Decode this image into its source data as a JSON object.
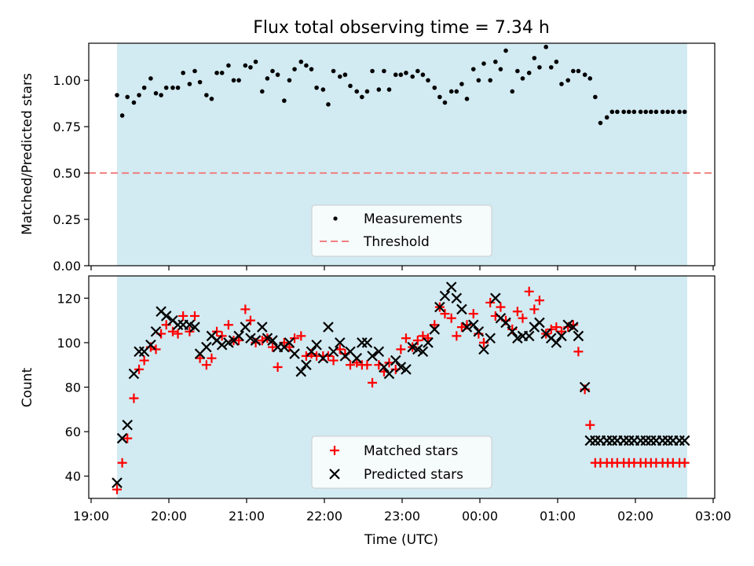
{
  "title": "Flux total observing time = 7.34 h",
  "colors": {
    "shade": "#add8e6",
    "threshold": "#f08080",
    "matched": "#ff0000",
    "predicted": "#000000",
    "measurement": "#000000"
  },
  "chart_data": [
    {
      "type": "scatter",
      "ylabel": "Matched/Predicted stars",
      "ylim": [
        0,
        1.2
      ],
      "yticks": [
        "0.00",
        "0.25",
        "0.50",
        "0.75",
        "1.00"
      ],
      "xlim": [
        "19:00",
        "03:00"
      ],
      "observing_window": [
        "19:20",
        "02:40"
      ],
      "threshold": 0.5,
      "legend": {
        "placement": "lower center",
        "items": [
          "Measurements",
          "Threshold"
        ]
      },
      "series": [
        {
          "name": "Measurements",
          "x": [
            "19:20",
            "19:24",
            "19:28",
            "19:33",
            "19:37",
            "19:41",
            "19:46",
            "19:50",
            "19:54",
            "19:58",
            "20:03",
            "20:07",
            "20:11",
            "20:16",
            "20:20",
            "20:24",
            "20:29",
            "20:33",
            "20:37",
            "20:41",
            "20:46",
            "20:50",
            "20:54",
            "20:59",
            "21:03",
            "21:07",
            "21:12",
            "21:16",
            "21:20",
            "21:24",
            "21:29",
            "21:33",
            "21:37",
            "21:42",
            "21:46",
            "21:50",
            "21:54",
            "21:59",
            "22:03",
            "22:07",
            "22:12",
            "22:16",
            "22:20",
            "22:25",
            "22:29",
            "22:33",
            "22:37",
            "22:42",
            "22:46",
            "22:50",
            "22:55",
            "22:59",
            "23:03",
            "23:08",
            "23:12",
            "23:16",
            "23:20",
            "23:25",
            "23:29",
            "23:33",
            "23:38",
            "23:42",
            "23:46",
            "23:50",
            "23:55",
            "23:59",
            "00:03",
            "00:08",
            "00:12",
            "00:16",
            "00:20",
            "00:25",
            "00:29",
            "00:33",
            "00:38",
            "00:42",
            "00:46",
            "00:51",
            "00:55",
            "00:59",
            "01:03",
            "01:08",
            "01:12",
            "01:16",
            "01:21",
            "01:25",
            "01:29",
            "01:33",
            "01:38",
            "01:42",
            "01:46",
            "01:51",
            "01:55",
            "01:59",
            "02:04",
            "02:08",
            "02:12",
            "02:16",
            "02:21",
            "02:25",
            "02:29",
            "02:34",
            "02:38"
          ],
          "y": [
            0.92,
            0.81,
            0.91,
            0.88,
            0.92,
            0.96,
            1.01,
            0.93,
            0.92,
            0.96,
            0.96,
            0.96,
            1.04,
            0.98,
            1.05,
            0.99,
            0.92,
            0.9,
            1.04,
            1.04,
            1.08,
            1.0,
            1.0,
            1.08,
            1.07,
            1.1,
            0.94,
            1.01,
            1.05,
            1.03,
            0.89,
            1.0,
            1.06,
            1.1,
            1.08,
            1.06,
            0.96,
            0.95,
            0.87,
            1.05,
            1.02,
            1.03,
            0.97,
            0.94,
            0.91,
            0.94,
            1.05,
            0.95,
            1.05,
            0.95,
            1.03,
            1.03,
            1.04,
            1.02,
            1.05,
            1.03,
            1.0,
            0.96,
            0.91,
            0.88,
            0.94,
            0.94,
            0.98,
            0.9,
            1.06,
            1.0,
            1.09,
            1.0,
            1.1,
            1.06,
            1.16,
            0.94,
            1.05,
            1.01,
            1.04,
            1.12,
            1.07,
            1.18,
            1.07,
            1.1,
            0.98,
            1.0,
            1.05,
            1.05,
            1.03,
            1.01,
            0.91,
            0.77,
            0.8,
            0.83,
            0.83,
            0.83,
            0.83,
            0.83,
            0.83,
            0.83,
            0.83,
            0.83,
            0.83,
            0.83,
            0.83,
            0.83,
            0.83
          ]
        }
      ]
    },
    {
      "type": "scatter",
      "xlabel": "Time (UTC)",
      "ylabel": "Count",
      "ylim": [
        30,
        130
      ],
      "yticks": [
        "40",
        "60",
        "80",
        "100",
        "120"
      ],
      "xlim": [
        "19:00",
        "03:00"
      ],
      "xticks": [
        "19:00",
        "20:00",
        "21:00",
        "22:00",
        "23:00",
        "00:00",
        "01:00",
        "02:00",
        "03:00"
      ],
      "observing_window": [
        "19:20",
        "02:40"
      ],
      "legend": {
        "placement": "lower center",
        "items": [
          "Matched stars",
          "Predicted stars"
        ]
      },
      "series": [
        {
          "name": "Matched stars",
          "marker": "+",
          "x": [
            "19:20",
            "19:24",
            "19:28",
            "19:33",
            "19:37",
            "19:41",
            "19:46",
            "19:50",
            "19:54",
            "19:58",
            "20:03",
            "20:07",
            "20:11",
            "20:16",
            "20:20",
            "20:24",
            "20:29",
            "20:33",
            "20:37",
            "20:41",
            "20:46",
            "20:50",
            "20:54",
            "20:59",
            "21:03",
            "21:07",
            "21:12",
            "21:16",
            "21:20",
            "21:24",
            "21:29",
            "21:33",
            "21:37",
            "21:42",
            "21:46",
            "21:50",
            "21:54",
            "21:59",
            "22:03",
            "22:07",
            "22:12",
            "22:16",
            "22:20",
            "22:25",
            "22:29",
            "22:33",
            "22:37",
            "22:42",
            "22:46",
            "22:50",
            "22:55",
            "22:59",
            "23:03",
            "23:08",
            "23:12",
            "23:16",
            "23:20",
            "23:25",
            "23:29",
            "23:33",
            "23:38",
            "23:42",
            "23:46",
            "23:50",
            "23:55",
            "23:59",
            "00:03",
            "00:08",
            "00:12",
            "00:16",
            "00:20",
            "00:25",
            "00:29",
            "00:33",
            "00:38",
            "00:42",
            "00:46",
            "00:51",
            "00:55",
            "00:59",
            "01:03",
            "01:08",
            "01:12",
            "01:16",
            "01:21",
            "01:25",
            "01:29",
            "01:33",
            "01:38",
            "01:42",
            "01:46",
            "01:51",
            "01:55",
            "01:59",
            "02:04",
            "02:08",
            "02:12",
            "02:16",
            "02:21",
            "02:25",
            "02:29",
            "02:34",
            "02:38"
          ],
          "y": [
            34,
            46,
            57,
            75,
            88,
            92,
            98,
            97,
            104,
            108,
            105,
            104,
            112,
            105,
            112,
            93,
            90,
            93,
            105,
            103,
            108,
            101,
            101,
            115,
            110,
            100,
            101,
            102,
            98,
            89,
            100,
            98,
            102,
            103,
            94,
            95,
            94,
            94,
            94,
            92,
            97,
            95,
            90,
            91,
            90,
            90,
            82,
            90,
            87,
            91,
            88,
            97,
            102,
            98,
            101,
            103,
            102,
            108,
            116,
            113,
            111,
            103,
            107,
            108,
            113,
            104,
            100,
            118,
            112,
            116,
            110,
            106,
            114,
            111,
            123,
            115,
            119,
            104,
            106,
            107,
            105,
            107,
            108,
            96,
            79,
            63,
            46,
            46,
            46,
            46,
            46,
            46,
            46,
            46,
            46,
            46,
            46,
            46,
            46,
            46,
            46,
            46,
            46
          ]
        },
        {
          "name": "Predicted stars",
          "marker": "x",
          "x": [
            "19:20",
            "19:24",
            "19:28",
            "19:33",
            "19:37",
            "19:41",
            "19:46",
            "19:50",
            "19:54",
            "19:58",
            "20:03",
            "20:07",
            "20:11",
            "20:16",
            "20:20",
            "20:24",
            "20:29",
            "20:33",
            "20:37",
            "20:41",
            "20:46",
            "20:50",
            "20:54",
            "20:59",
            "21:03",
            "21:07",
            "21:12",
            "21:16",
            "21:20",
            "21:24",
            "21:29",
            "21:33",
            "21:37",
            "21:42",
            "21:46",
            "21:50",
            "21:54",
            "21:59",
            "22:03",
            "22:07",
            "22:12",
            "22:16",
            "22:20",
            "22:25",
            "22:29",
            "22:33",
            "22:37",
            "22:42",
            "22:46",
            "22:50",
            "22:55",
            "22:59",
            "23:03",
            "23:08",
            "23:12",
            "23:16",
            "23:20",
            "23:25",
            "23:29",
            "23:33",
            "23:38",
            "23:42",
            "23:46",
            "23:50",
            "23:55",
            "23:59",
            "00:03",
            "00:08",
            "00:12",
            "00:16",
            "00:20",
            "00:25",
            "00:29",
            "00:33",
            "00:38",
            "00:42",
            "00:46",
            "00:51",
            "00:55",
            "00:59",
            "01:03",
            "01:08",
            "01:12",
            "01:16",
            "01:21",
            "01:25",
            "01:29",
            "01:33",
            "01:38",
            "01:42",
            "01:46",
            "01:51",
            "01:55",
            "01:59",
            "02:04",
            "02:08",
            "02:12",
            "02:16",
            "02:21",
            "02:25",
            "02:29",
            "02:34",
            "02:38"
          ],
          "y": [
            37,
            57,
            63,
            86,
            96,
            96,
            99,
            105,
            114,
            112,
            110,
            108,
            108,
            108,
            107,
            95,
            98,
            103,
            101,
            99,
            100,
            101,
            103,
            107,
            102,
            101,
            107,
            102,
            101,
            98,
            98,
            100,
            95,
            87,
            90,
            96,
            99,
            93,
            107,
            96,
            100,
            94,
            96,
            93,
            100,
            100,
            94,
            96,
            89,
            86,
            92,
            89,
            88,
            98,
            97,
            96,
            100,
            106,
            116,
            121,
            125,
            120,
            115,
            107,
            108,
            105,
            97,
            102,
            120,
            111,
            109,
            105,
            102,
            103,
            103,
            107,
            109,
            104,
            102,
            100,
            103,
            108,
            107,
            103,
            80,
            56,
            56,
            56,
            56,
            56,
            56,
            56,
            56,
            56,
            56,
            56,
            56,
            56,
            56,
            56,
            56,
            56,
            56
          ]
        }
      ]
    }
  ]
}
